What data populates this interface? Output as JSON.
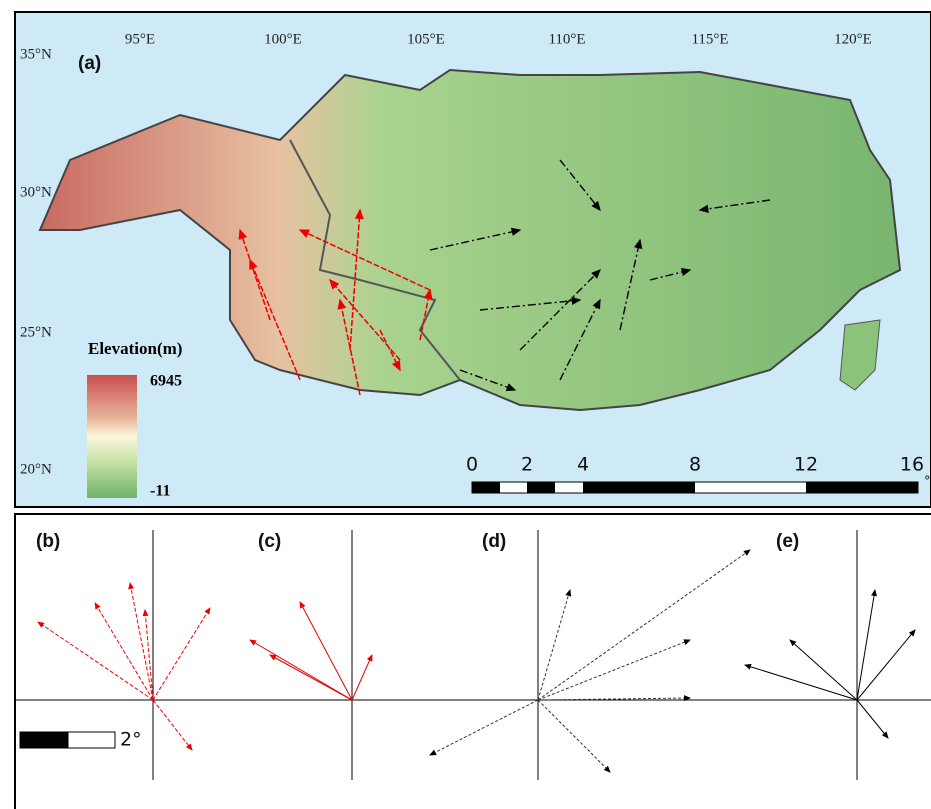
{
  "panel_a": {
    "label": "(a)",
    "lon_ticks": [
      "95°E",
      "100°E",
      "105°E",
      "110°E",
      "115°E",
      "120°E"
    ],
    "lat_ticks": [
      "35°N",
      "30°N",
      "25°N",
      "20°N"
    ],
    "legend": {
      "title": "Elevation(m)",
      "max": "6945",
      "min": "-11"
    },
    "scale_bar": {
      "labels": [
        "0",
        "2",
        "4",
        "8",
        "12",
        "16"
      ],
      "unit": "°"
    }
  },
  "panels": [
    {
      "label": "(b)"
    },
    {
      "label": "(c)"
    },
    {
      "label": "(d)"
    },
    {
      "label": "(e)"
    }
  ],
  "vector_scale": {
    "label": "2°"
  }
}
